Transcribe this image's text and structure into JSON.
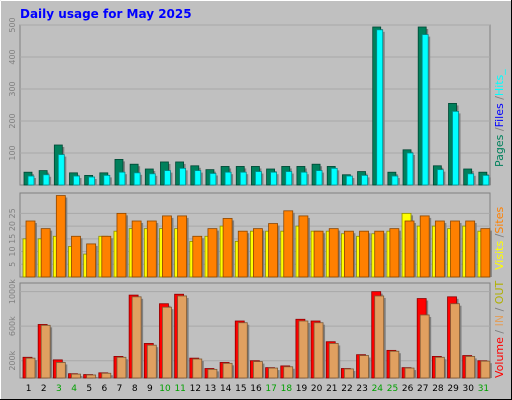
{
  "title": "Daily usage for May 2025",
  "colors": {
    "background": "#c0c0c0",
    "title": "#0000ff",
    "pages": "#00805c",
    "files": "#0000ff",
    "hits": "#00ffff",
    "visits": "#ffff00",
    "sites": "#ff8000",
    "in": "#e0a060",
    "out": "#b0b000",
    "volume": "#ff0000",
    "weekend_day": "#00a000",
    "weekday": "#000000"
  },
  "chart_data": [
    {
      "type": "bar",
      "name": "hits",
      "label_parts": [
        "Pages",
        " /",
        "Files",
        " /",
        "Hits",
        "_"
      ],
      "ticks": [
        "100",
        "200",
        "300",
        "400",
        "500"
      ],
      "ylim": [
        0,
        500
      ],
      "categories": [
        "1",
        "2",
        "3",
        "4",
        "5",
        "6",
        "7",
        "8",
        "9",
        "10",
        "11",
        "12",
        "13",
        "14",
        "15",
        "16",
        "17",
        "18",
        "19",
        "20",
        "21",
        "22",
        "23",
        "24",
        "25",
        "26",
        "27",
        "28",
        "29",
        "30",
        "31"
      ],
      "weekend": [
        3,
        4,
        10,
        11,
        17,
        18,
        24,
        25,
        31
      ],
      "series": [
        {
          "key": "pages",
          "values": [
            40,
            45,
            125,
            38,
            30,
            38,
            80,
            65,
            50,
            72,
            72,
            60,
            48,
            58,
            58,
            58,
            50,
            58,
            58,
            65,
            58,
            32,
            42,
            500,
            40,
            110,
            500,
            60,
            255,
            50,
            40
          ]
        },
        {
          "key": "files",
          "values": [
            28,
            32,
            95,
            28,
            25,
            30,
            40,
            38,
            35,
            45,
            52,
            45,
            36,
            40,
            40,
            42,
            40,
            42,
            40,
            45,
            52,
            28,
            30,
            485,
            28,
            100,
            470,
            48,
            230,
            35,
            30
          ]
        },
        {
          "key": "hits",
          "values": [
            28,
            32,
            95,
            28,
            25,
            30,
            40,
            38,
            35,
            45,
            52,
            45,
            36,
            40,
            40,
            42,
            40,
            42,
            40,
            45,
            52,
            28,
            30,
            485,
            28,
            100,
            470,
            48,
            230,
            35,
            30
          ]
        }
      ]
    },
    {
      "type": "bar",
      "name": "sites",
      "label_parts": [
        "Visits",
        " /",
        "Sites"
      ],
      "ticks": [
        "5",
        "10",
        "15",
        "20",
        "25"
      ],
      "ylim": [
        0,
        33
      ],
      "series": [
        {
          "key": "visits",
          "values": [
            15,
            15,
            16,
            12,
            9,
            16,
            18,
            19,
            19,
            19,
            19,
            14,
            16,
            20,
            14,
            18,
            18,
            18,
            20,
            18,
            18,
            17,
            16,
            17,
            18,
            25,
            20,
            20,
            19,
            20,
            18
          ]
        },
        {
          "key": "sites",
          "values": [
            22,
            19,
            32,
            16,
            13,
            16,
            25,
            22,
            22,
            24,
            24,
            16,
            19,
            23,
            18,
            19,
            21,
            26,
            24,
            18,
            19,
            18,
            18,
            18,
            19,
            22,
            24,
            22,
            22,
            22,
            19
          ]
        }
      ]
    },
    {
      "type": "bar",
      "name": "volume",
      "label_parts": [
        "Volume",
        " / ",
        "IN",
        " / ",
        "OUT"
      ],
      "ticks": [
        "200k",
        "600k",
        "1000k"
      ],
      "ylim": [
        0,
        1100
      ],
      "series": [
        {
          "key": "volume",
          "values": [
            240,
            620,
            210,
            50,
            40,
            60,
            250,
            960,
            400,
            860,
            970,
            230,
            110,
            180,
            660,
            200,
            120,
            140,
            680,
            660,
            420,
            110,
            270,
            1000,
            320,
            120,
            920,
            250,
            940,
            260,
            200
          ]
        },
        {
          "key": "in",
          "values": [
            230,
            610,
            180,
            45,
            35,
            55,
            240,
            940,
            380,
            820,
            950,
            220,
            100,
            170,
            640,
            190,
            115,
            130,
            660,
            640,
            400,
            105,
            260,
            950,
            310,
            115,
            730,
            240,
            860,
            250,
            195
          ]
        }
      ]
    }
  ]
}
